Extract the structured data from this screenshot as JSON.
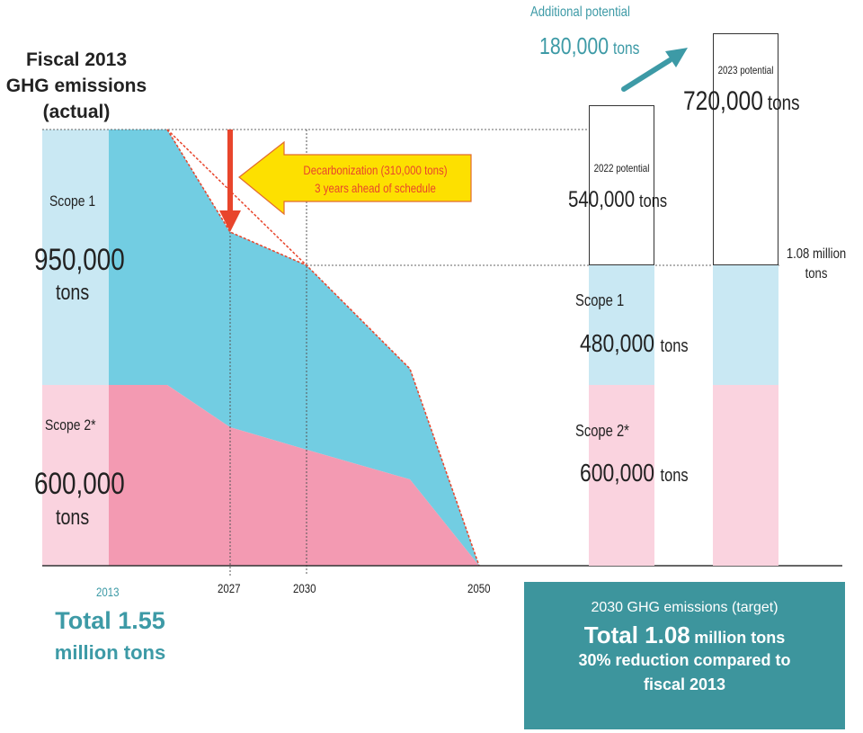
{
  "chart_data": {
    "type": "area",
    "title": "Fiscal 2013 GHG emissions (actual)",
    "units": "tons",
    "x_ticks": [
      "2013",
      "2027",
      "2030",
      "2050"
    ],
    "series": [
      {
        "name": "Scope 1",
        "color": "#72cde2",
        "fiscal_2013_value": 950000,
        "target_2030_value": 480000
      },
      {
        "name": "Scope 2*",
        "color": "#f39ab2",
        "fiscal_2013_value": 600000,
        "target_2030_value": 600000
      }
    ],
    "baseline_bar": {
      "scope1": 950000,
      "scope2": 600000,
      "scope1_color": "#c9e8f3",
      "scope2_color": "#fad3df"
    },
    "reduction_path": {
      "total_2013": 1550000,
      "total_2030": 1080000,
      "total_2050": 0,
      "line_color": "#e8452c"
    },
    "potential_bars": [
      {
        "label": "2022 potential",
        "value": 540000
      },
      {
        "label": "2023 potential",
        "value": 720000
      }
    ],
    "additional_potential": 180000,
    "decarbonization_tons": 310000
  },
  "labels": {
    "title_line1": "Fiscal 2013",
    "title_line2": "GHG emissions",
    "title_line3": "(actual)",
    "scope1": "Scope 1",
    "scope1_value": "950,000",
    "scope2": "Scope 2*",
    "scope2_value": "600,000",
    "tons": "tons",
    "x2013": "2013",
    "x2027": "2027",
    "x2030": "2030",
    "x2050": "2050",
    "total_left_1": "Total 1.55",
    "total_left_2": "million tons",
    "arrow_line1": "Decarbonization (310,000 tons)",
    "arrow_line2": "3 years ahead of schedule",
    "additional_label": "Additional potential",
    "additional_value": "180,000",
    "p2022_label": "2022 potential",
    "p2022_value": "540,000",
    "p2023_label": "2023 potential",
    "p2023_value": "720,000",
    "million_1": "1.08 million",
    "million_2": "tons",
    "r_scope1": "Scope 1",
    "r_scope1_value": "480,000",
    "r_scope2": "Scope 2*",
    "r_scope2_value": "600,000",
    "box_title": "2030 GHG emissions (target)",
    "box_total_big": "Total 1.08",
    "box_total_small": "million tons",
    "box_line3": "30% reduction compared to",
    "box_line4": "fiscal 2013"
  }
}
